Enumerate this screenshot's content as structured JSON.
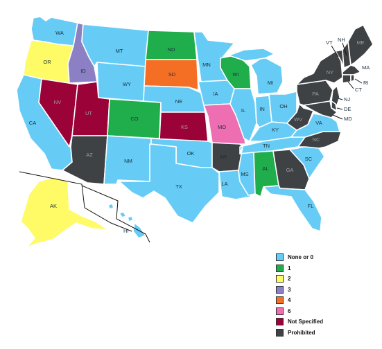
{
  "colors": {
    "none": "#66CCF5",
    "one": "#1FAE4B",
    "two": "#FEFB66",
    "three": "#8B80C3",
    "four": "#F46F24",
    "six": "#EE6EB2",
    "not_specified": "#9B0238",
    "prohibited": "#3E4245"
  },
  "legend": [
    {
      "key": "none",
      "label": "None or 0"
    },
    {
      "key": "one",
      "label": "1"
    },
    {
      "key": "two",
      "label": "2"
    },
    {
      "key": "three",
      "label": "3"
    },
    {
      "key": "four",
      "label": "4"
    },
    {
      "key": "six",
      "label": "6"
    },
    {
      "key": "not_specified",
      "label": "Not Specified"
    },
    {
      "key": "prohibited",
      "label": "Prohibited"
    }
  ],
  "states": {
    "WA": {
      "label": "WA",
      "category": "none"
    },
    "OR": {
      "label": "OR",
      "category": "two"
    },
    "CA": {
      "label": "CA",
      "category": "none"
    },
    "NV": {
      "label": "NV",
      "category": "not_specified"
    },
    "ID": {
      "label": "ID",
      "category": "three"
    },
    "MT": {
      "label": "MT",
      "category": "none"
    },
    "WY": {
      "label": "WY",
      "category": "none"
    },
    "UT": {
      "label": "UT",
      "category": "not_specified"
    },
    "AZ": {
      "label": "AZ",
      "category": "prohibited"
    },
    "CO": {
      "label": "CO",
      "category": "one"
    },
    "NM": {
      "label": "NM",
      "category": "none"
    },
    "ND": {
      "label": "ND",
      "category": "one"
    },
    "SD": {
      "label": "SD",
      "category": "four"
    },
    "NE": {
      "label": "NE",
      "category": "none"
    },
    "KS": {
      "label": "KS",
      "category": "not_specified"
    },
    "OK": {
      "label": "OK",
      "category": "none"
    },
    "TX": {
      "label": "TX",
      "category": "none"
    },
    "MN": {
      "label": "MN",
      "category": "none"
    },
    "IA": {
      "label": "IA",
      "category": "none"
    },
    "MO": {
      "label": "MO",
      "category": "six"
    },
    "AR": {
      "label": "AR",
      "category": "prohibited"
    },
    "LA": {
      "label": "LA",
      "category": "none"
    },
    "WI": {
      "label": "WI",
      "category": "one"
    },
    "IL": {
      "label": "IL",
      "category": "none"
    },
    "MI": {
      "label": "MI",
      "category": "none"
    },
    "IN": {
      "label": "IN",
      "category": "none"
    },
    "OH": {
      "label": "OH",
      "category": "none"
    },
    "KY": {
      "label": "KY",
      "category": "none"
    },
    "TN": {
      "label": "TN",
      "category": "none"
    },
    "MS": {
      "label": "MS",
      "category": "none"
    },
    "AL": {
      "label": "AL",
      "category": "one"
    },
    "GA": {
      "label": "GA",
      "category": "prohibited"
    },
    "FL": {
      "label": "FL",
      "category": "none"
    },
    "SC": {
      "label": "SC",
      "category": "none"
    },
    "NC": {
      "label": "NC",
      "category": "prohibited"
    },
    "VA": {
      "label": "VA",
      "category": "none"
    },
    "WV": {
      "label": "WV",
      "category": "prohibited"
    },
    "PA": {
      "label": "PA",
      "category": "prohibited"
    },
    "NY": {
      "label": "NY",
      "category": "prohibited"
    },
    "VT": {
      "label": "VT",
      "category": "prohibited"
    },
    "NH": {
      "label": "NH",
      "category": "prohibited"
    },
    "ME": {
      "label": "ME",
      "category": "prohibited"
    },
    "MA": {
      "label": "MA",
      "category": "prohibited"
    },
    "CT": {
      "label": "CT",
      "category": "prohibited"
    },
    "RI": {
      "label": "RI",
      "category": "prohibited"
    },
    "NJ": {
      "label": "NJ",
      "category": "prohibited"
    },
    "DE": {
      "label": "DE",
      "category": "prohibited"
    },
    "MD": {
      "label": "MD",
      "category": "prohibited"
    },
    "AK": {
      "label": "AK",
      "category": "two"
    },
    "HI": {
      "label": "HI",
      "category": "none"
    }
  }
}
